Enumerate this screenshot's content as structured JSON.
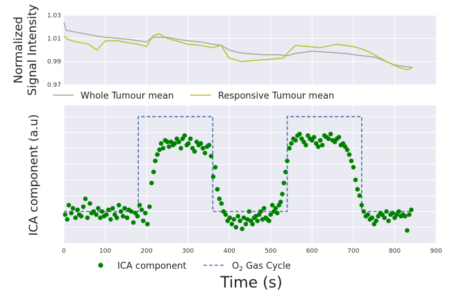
{
  "chart_data": [
    {
      "type": "line",
      "ylabel": [
        "Normalized",
        "Signal Intensity"
      ],
      "xlim": [
        0,
        900
      ],
      "ylim": [
        0.97,
        1.03
      ],
      "yticks": [
        "0.97",
        "0.99",
        "1.01",
        "1.03"
      ],
      "yticks_values": [
        0.97,
        0.99,
        1.01,
        1.03
      ],
      "grid": true,
      "series": [
        {
          "name": "Whole Tumour mean",
          "color": "#a5a5a5",
          "x": [
            0,
            5,
            20,
            50,
            80,
            100,
            130,
            160,
            180,
            200,
            210,
            220,
            250,
            280,
            300,
            330,
            360,
            380,
            400,
            420,
            440,
            480,
            520,
            540,
            560,
            600,
            640,
            680,
            720,
            750,
            780,
            800,
            820,
            843
          ],
          "y": [
            1.024,
            1.017,
            1.016,
            1.014,
            1.012,
            1.011,
            1.01,
            1.009,
            1.008,
            1.007,
            1.01,
            1.011,
            1.011,
            1.009,
            1.008,
            1.007,
            1.005,
            1.004,
            1.0,
            0.998,
            0.997,
            0.996,
            0.996,
            0.995,
            0.997,
            0.999,
            0.998,
            0.997,
            0.995,
            0.994,
            0.99,
            0.987,
            0.986,
            0.985
          ]
        },
        {
          "name": "Responsive Tumour mean",
          "color": "#bcbd22",
          "x": [
            0,
            10,
            30,
            60,
            80,
            100,
            130,
            160,
            180,
            200,
            215,
            230,
            250,
            280,
            300,
            330,
            360,
            380,
            400,
            430,
            460,
            500,
            530,
            545,
            560,
            590,
            620,
            660,
            700,
            720,
            740,
            760,
            780,
            810,
            830,
            843
          ],
          "y": [
            1.012,
            1.009,
            1.007,
            1.005,
            1.0,
            1.008,
            1.008,
            1.006,
            1.005,
            1.003,
            1.012,
            1.014,
            1.01,
            1.007,
            1.005,
            1.004,
            1.002,
            1.004,
            0.993,
            0.99,
            0.991,
            0.992,
            0.993,
            0.999,
            1.004,
            1.003,
            1.002,
            1.005,
            1.003,
            1.001,
            0.998,
            0.994,
            0.99,
            0.985,
            0.983,
            0.985
          ]
        }
      ],
      "legend": [
        {
          "label": "Whole Tumour mean",
          "color": "#a5a5a5"
        },
        {
          "label": "Responsive Tumour mean",
          "color": "#bcbd22"
        }
      ],
      "legend_position": "below"
    },
    {
      "type": "scatter",
      "ylabel": "ICA component (a.u)",
      "xlabel": "Time (s)",
      "xlim": [
        0,
        900
      ],
      "ylim": [
        -4,
        4.7
      ],
      "xticks": [
        "0",
        "100",
        "200",
        "300",
        "400",
        "500",
        "600",
        "700",
        "800",
        "900"
      ],
      "xticks_values": [
        0,
        100,
        200,
        300,
        400,
        500,
        600,
        700,
        800,
        900
      ],
      "grid": true,
      "series": [
        {
          "name": "ICA component",
          "color": "#008000",
          "x": [
            3,
            8,
            12,
            18,
            22,
            28,
            33,
            37,
            42,
            47,
            52,
            57,
            63,
            67,
            72,
            78,
            83,
            88,
            92,
            97,
            103,
            108,
            113,
            118,
            123,
            128,
            133,
            138,
            143,
            147,
            153,
            157,
            163,
            168,
            173,
            178,
            183,
            188,
            192,
            197,
            202,
            207,
            212,
            217,
            221,
            226,
            231,
            235,
            240,
            245,
            250,
            254,
            259,
            264,
            268,
            273,
            278,
            283,
            287,
            292,
            297,
            301,
            306,
            311,
            316,
            321,
            326,
            331,
            336,
            341,
            346,
            351,
            356,
            361,
            366,
            371,
            376,
            381,
            386,
            391,
            396,
            401,
            406,
            411,
            416,
            421,
            426,
            431,
            435,
            440,
            444,
            448,
            452,
            456,
            460,
            464,
            468,
            472,
            476,
            480,
            484,
            488,
            492,
            496,
            500,
            504,
            508,
            512,
            516,
            520,
            524,
            528,
            532,
            536,
            540,
            545,
            550,
            555,
            560,
            565,
            570,
            575,
            580,
            585,
            590,
            595,
            600,
            605,
            610,
            615,
            620,
            625,
            630,
            635,
            640,
            645,
            650,
            655,
            660,
            665,
            670,
            675,
            680,
            685,
            690,
            695,
            700,
            705,
            710,
            715,
            720,
            725,
            730,
            735,
            740,
            745,
            750,
            755,
            760,
            765,
            770,
            775,
            780,
            785,
            790,
            795,
            800,
            805,
            810,
            815,
            820,
            825,
            830,
            835,
            840
          ],
          "y": [
            -2.2,
            -2.5,
            -1.6,
            -2.1,
            -1.8,
            -2.4,
            -1.9,
            -2.2,
            -2.3,
            -1.7,
            -1.2,
            -2.4,
            -1.5,
            -2.1,
            -2.0,
            -2.2,
            -1.8,
            -2.4,
            -2.0,
            -2.3,
            -2.2,
            -1.9,
            -2.5,
            -1.8,
            -2.2,
            -2.4,
            -1.6,
            -2.0,
            -2.3,
            -1.8,
            -2.4,
            -1.9,
            -2.0,
            -2.7,
            -2.1,
            -2.3,
            -1.6,
            -1.9,
            -2.6,
            -2.1,
            -2.8,
            -1.7,
            -0.2,
            0.5,
            1.2,
            1.6,
            1.9,
            2.3,
            2.0,
            2.5,
            2.4,
            2.1,
            2.4,
            2.2,
            2.3,
            2.6,
            2.4,
            2.0,
            2.6,
            2.8,
            2.2,
            2.3,
            2.6,
            2.0,
            1.8,
            2.4,
            2.2,
            2.3,
            2.0,
            1.7,
            2.1,
            2.2,
            1.5,
            0.2,
            0.8,
            -0.6,
            -1.2,
            -1.5,
            -2.0,
            -2.2,
            -2.6,
            -2.4,
            -2.8,
            -2.5,
            -3.0,
            -2.3,
            -2.6,
            -3.1,
            -2.4,
            -2.8,
            -2.5,
            -2.0,
            -2.6,
            -2.8,
            -2.4,
            -2.3,
            -2.6,
            -2.2,
            -2.0,
            -2.5,
            -1.8,
            -2.4,
            -2.5,
            -2.6,
            -2.2,
            -1.6,
            -2.0,
            -1.8,
            -2.1,
            -1.6,
            -1.4,
            -0.9,
            -0.2,
            0.5,
            1.2,
            2.0,
            2.3,
            2.6,
            2.5,
            2.8,
            2.9,
            2.6,
            2.4,
            2.2,
            2.8,
            2.6,
            2.5,
            2.7,
            2.3,
            2.1,
            2.5,
            2.2,
            2.8,
            2.7,
            2.6,
            2.9,
            2.5,
            2.4,
            2.6,
            2.7,
            2.2,
            2.3,
            2.1,
            1.9,
            1.6,
            1.2,
            0.8,
            0.0,
            -0.6,
            -1.0,
            -1.6,
            -2.0,
            -2.3,
            -2.2,
            -2.5,
            -2.4,
            -2.8,
            -2.6,
            -2.3,
            -2.1,
            -2.2,
            -2.4,
            -2.0,
            -2.6,
            -2.2,
            -2.1,
            -2.4,
            -2.2,
            -2.0,
            -2.3,
            -2.2,
            -2.3,
            -3.2,
            -2.2,
            -1.9
          ],
          "marker": "circle"
        },
        {
          "name": "O2 Gas Cycle",
          "color": "#4c72b0",
          "style": "dashed",
          "x": [
            0,
            180,
            180,
            360,
            360,
            540,
            540,
            720,
            720,
            843
          ],
          "y": [
            -2,
            -2,
            4,
            4,
            -2,
            -2,
            4,
            4,
            -2,
            -2
          ]
        }
      ],
      "legend": [
        {
          "label": "ICA component",
          "color": "#008000",
          "marker": "circle"
        },
        {
          "label_main": "O",
          "label_sub": "2",
          "label_rest": " Gas Cycle",
          "color": "#4c72b0",
          "style": "dashed"
        }
      ],
      "legend_position": "below"
    }
  ]
}
